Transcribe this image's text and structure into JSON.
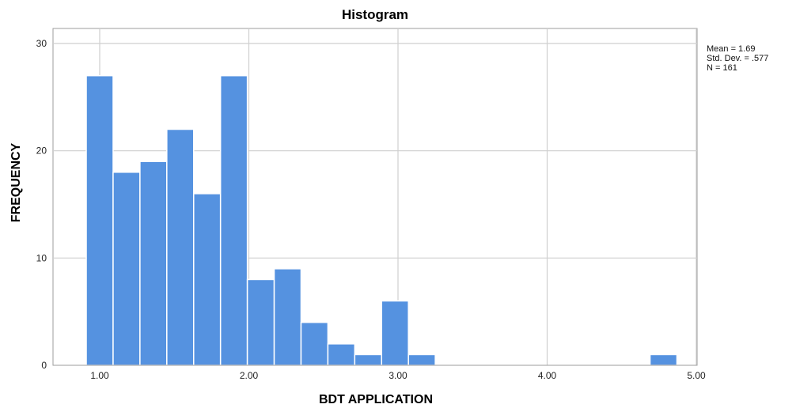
{
  "chart_data": {
    "type": "bar",
    "title": "Histogram",
    "xlabel": "BDT APPLICATION",
    "ylabel": "FREQUENCY",
    "x_ticks": [
      "1.00",
      "2.00",
      "3.00",
      "4.00",
      "5.00"
    ],
    "x_tick_values": [
      1,
      2,
      3,
      4,
      5
    ],
    "y_ticks": [
      "0",
      "10",
      "20",
      "30"
    ],
    "y_tick_values": [
      0,
      10,
      20,
      30
    ],
    "xlim": [
      0.7,
      5.05
    ],
    "ylim": [
      0,
      32
    ],
    "bins": [
      {
        "from": 0.91,
        "to": 1.09,
        "value": 27
      },
      {
        "from": 1.09,
        "to": 1.27,
        "value": 18
      },
      {
        "from": 1.27,
        "to": 1.45,
        "value": 19
      },
      {
        "from": 1.45,
        "to": 1.63,
        "value": 22
      },
      {
        "from": 1.63,
        "to": 1.81,
        "value": 16
      },
      {
        "from": 1.81,
        "to": 1.99,
        "value": 27
      },
      {
        "from": 1.99,
        "to": 2.17,
        "value": 8
      },
      {
        "from": 2.17,
        "to": 2.35,
        "value": 9
      },
      {
        "from": 2.35,
        "to": 2.53,
        "value": 4
      },
      {
        "from": 2.53,
        "to": 2.71,
        "value": 2
      },
      {
        "from": 2.71,
        "to": 2.89,
        "value": 1
      },
      {
        "from": 2.89,
        "to": 3.07,
        "value": 6
      },
      {
        "from": 3.07,
        "to": 3.25,
        "value": 1
      },
      {
        "from": 3.25,
        "to": 3.43,
        "value": 0
      },
      {
        "from": 3.43,
        "to": 3.61,
        "value": 0
      },
      {
        "from": 3.61,
        "to": 3.79,
        "value": 0
      },
      {
        "from": 3.79,
        "to": 3.97,
        "value": 0
      },
      {
        "from": 3.97,
        "to": 4.15,
        "value": 0
      },
      {
        "from": 4.15,
        "to": 4.33,
        "value": 0
      },
      {
        "from": 4.33,
        "to": 4.51,
        "value": 0
      },
      {
        "from": 4.51,
        "to": 4.69,
        "value": 0
      },
      {
        "from": 4.69,
        "to": 4.87,
        "value": 1
      }
    ],
    "bar_color": "#5592e0",
    "grid": true,
    "legend": "none",
    "stats": {
      "mean": "Mean = 1.69",
      "std": "Std. Dev. = .577",
      "n": "N = 161"
    }
  }
}
